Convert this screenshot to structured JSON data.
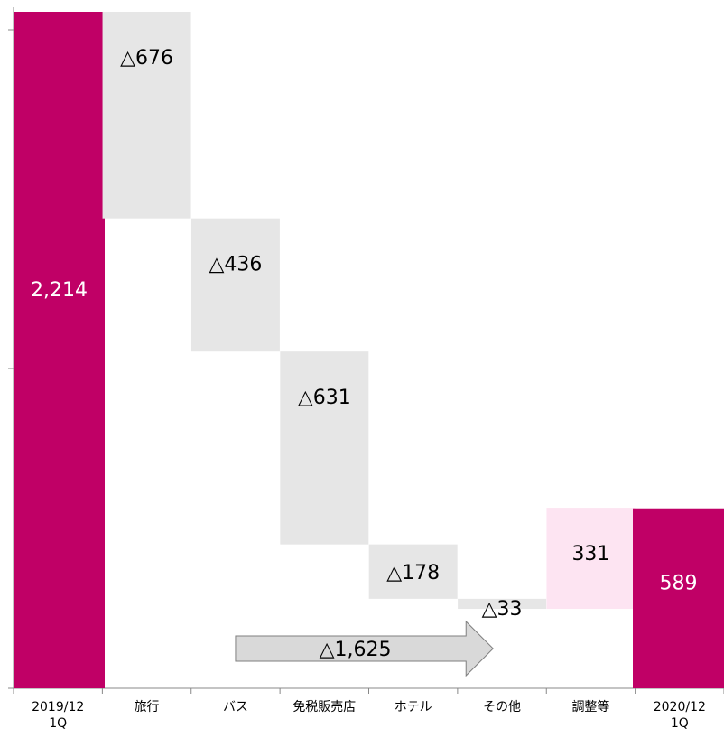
{
  "chart_data": {
    "type": "waterfall",
    "title": "",
    "xlabel": "",
    "ylabel": "",
    "ylim": [
      0,
      2300
    ],
    "grid": false,
    "legend": "none",
    "categories": [
      [
        "2019/12",
        "1Q"
      ],
      [
        "旅行"
      ],
      [
        "バス"
      ],
      [
        "免税販売店"
      ],
      [
        "ホテル"
      ],
      [
        "その他"
      ],
      [
        "調整等"
      ],
      [
        "2020/12",
        "1Q"
      ]
    ],
    "bars": [
      {
        "kind": "total",
        "start": 0,
        "end": 2214,
        "label": "2,214"
      },
      {
        "kind": "decrease",
        "start": 2214,
        "end": 1538,
        "label": "△676"
      },
      {
        "kind": "decrease",
        "start": 1538,
        "end": 1102,
        "label": "△436"
      },
      {
        "kind": "decrease",
        "start": 1102,
        "end": 471,
        "label": "△631"
      },
      {
        "kind": "decrease",
        "start": 471,
        "end": 293,
        "label": "△178"
      },
      {
        "kind": "decrease",
        "start": 293,
        "end": 260,
        "label": "△33"
      },
      {
        "kind": "increase",
        "start": 260,
        "end": 591,
        "label": "331"
      },
      {
        "kind": "total",
        "start": 0,
        "end": 589,
        "label": "589"
      }
    ],
    "annotation": {
      "label": "△1,625",
      "from_category": 2,
      "to_category": 5
    },
    "colors": {
      "total": "#c00066",
      "decrease": "#e6e6e6",
      "increase": "#fde4f2",
      "total_text": "#ffffff",
      "other_text": "#000000",
      "arrow_fill": "#d9d9d9",
      "arrow_stroke": "#7f7f7f",
      "axis": "#888888"
    }
  }
}
